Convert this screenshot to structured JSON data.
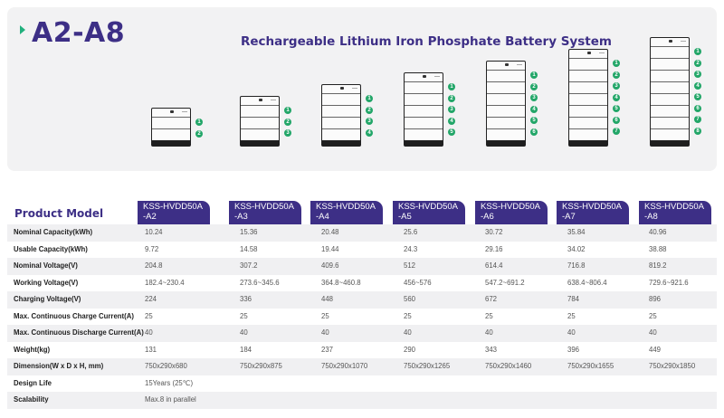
{
  "header": {
    "model_range": "A2-A8",
    "system_title": "Rechargeable Lithium Iron Phosphate Battery System"
  },
  "units": [
    {
      "modules": [
        "1",
        "2"
      ]
    },
    {
      "modules": [
        "1",
        "2",
        "3"
      ]
    },
    {
      "modules": [
        "1",
        "2",
        "3",
        "4"
      ]
    },
    {
      "modules": [
        "1",
        "2",
        "3",
        "4",
        "5"
      ]
    },
    {
      "modules": [
        "1",
        "2",
        "3",
        "4",
        "5",
        "6"
      ]
    },
    {
      "modules": [
        "1",
        "2",
        "3",
        "4",
        "5",
        "6",
        "7"
      ]
    },
    {
      "modules": [
        "1",
        "2",
        "3",
        "4",
        "5",
        "6",
        "7",
        "8"
      ]
    }
  ],
  "table": {
    "product_model_label": "Product Model",
    "models": [
      {
        "line1": "KSS-HVDD50A",
        "line2": "-A2"
      },
      {
        "line1": "KSS-HVDD50A",
        "line2": "-A3"
      },
      {
        "line1": "KSS-HVDD50A",
        "line2": "-A4"
      },
      {
        "line1": "KSS-HVDD50A",
        "line2": "-A5"
      },
      {
        "line1": "KSS-HVDD50A",
        "line2": "-A6"
      },
      {
        "line1": "KSS-HVDD50A",
        "line2": "-A7"
      },
      {
        "line1": "KSS-HVDD50A",
        "line2": "-A8"
      }
    ],
    "rows": [
      {
        "label": "Nominal Capacity(kWh)",
        "values": [
          "10.24",
          "15.36",
          "20.48",
          "25.6",
          "30.72",
          "35.84",
          "40.96"
        ]
      },
      {
        "label": "Usable Capacity(kWh)",
        "values": [
          "9.72",
          "14.58",
          "19.44",
          "24.3",
          "29.16",
          "34.02",
          "38.88"
        ]
      },
      {
        "label": "Nominal Voltage(V)",
        "values": [
          "204.8",
          "307.2",
          "409.6",
          "512",
          "614.4",
          "716.8",
          "819.2"
        ]
      },
      {
        "label": "Working Voltage(V)",
        "values": [
          "182.4~230.4",
          "273.6~345.6",
          "364.8~460.8",
          "456~576",
          "547.2~691.2",
          "638.4~806.4",
          "729.6~921.6"
        ]
      },
      {
        "label": "Charging Voltage(V)",
        "values": [
          "224",
          "336",
          "448",
          "560",
          "672",
          "784",
          "896"
        ]
      },
      {
        "label": "Max. Continuous Charge Current(A)",
        "values": [
          "25",
          "25",
          "25",
          "25",
          "25",
          "25",
          "25"
        ]
      },
      {
        "label": "Max. Continuous Discharge Current(A)",
        "values": [
          "40",
          "40",
          "40",
          "40",
          "40",
          "40",
          "40"
        ]
      },
      {
        "label": "Weight(kg)",
        "values": [
          "131",
          "184",
          "237",
          "290",
          "343",
          "396",
          "449"
        ]
      },
      {
        "label": "Dimension(W x D x H, mm)",
        "values": [
          "750x290x680",
          "750x290x875",
          "750x290x1070",
          "750x290x1265",
          "750x290x1460",
          "750x290x1655",
          "750x290x1850"
        ]
      },
      {
        "label": "Design Life",
        "values": [
          "15Years (25℃)"
        ]
      },
      {
        "label": "Scalability",
        "values": [
          "Max.8 in parallel"
        ]
      }
    ]
  },
  "colors": {
    "brand_purple": "#3d2f86",
    "accent_green": "#22a668",
    "row_alt": "#f0f0f2"
  }
}
